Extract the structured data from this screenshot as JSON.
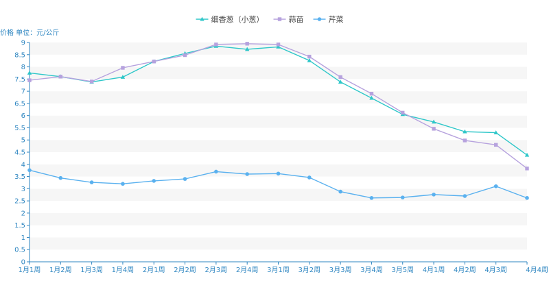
{
  "chart_data": {
    "type": "line",
    "ylabel": "价格 单位：元/公斤",
    "ylim": [
      0,
      9
    ],
    "yticks": [
      0,
      0.5,
      1,
      1.5,
      2,
      2.5,
      3,
      3.5,
      4,
      4.5,
      5,
      5.5,
      6,
      6.5,
      7,
      7.5,
      8,
      8.5,
      9
    ],
    "categories": [
      "1月1周",
      "1月2周",
      "1月3周",
      "1月4周",
      "2月1周",
      "2月2周",
      "2月3周",
      "2月4周",
      "3月1周",
      "3月2周",
      "3月3周",
      "3月4周",
      "3月5周",
      "4月1周",
      "4月2周",
      "4月3周",
      "4月4周"
    ],
    "legend_position": "top-center",
    "grid": "horizontal-bands",
    "series": [
      {
        "name": "细香葱（小葱）",
        "color": "#2ec7c9",
        "marker": "triangle",
        "values": [
          7.75,
          7.6,
          7.38,
          7.58,
          8.22,
          8.55,
          8.85,
          8.72,
          8.82,
          8.26,
          7.38,
          6.72,
          6.05,
          5.74,
          5.34,
          5.3,
          4.38
        ]
      },
      {
        "name": "蒜苗",
        "color": "#b6a2de",
        "marker": "square",
        "values": [
          7.45,
          7.6,
          7.4,
          7.96,
          8.22,
          8.48,
          8.92,
          8.95,
          8.92,
          8.42,
          7.58,
          6.9,
          6.12,
          5.46,
          4.98,
          4.8,
          3.83
        ]
      },
      {
        "name": "芹菜",
        "color": "#5ab1ef",
        "marker": "circle",
        "values": [
          3.76,
          3.44,
          3.26,
          3.2,
          3.32,
          3.4,
          3.7,
          3.6,
          3.62,
          3.46,
          2.88,
          2.62,
          2.64,
          2.76,
          2.7,
          3.1,
          2.62
        ]
      }
    ]
  }
}
